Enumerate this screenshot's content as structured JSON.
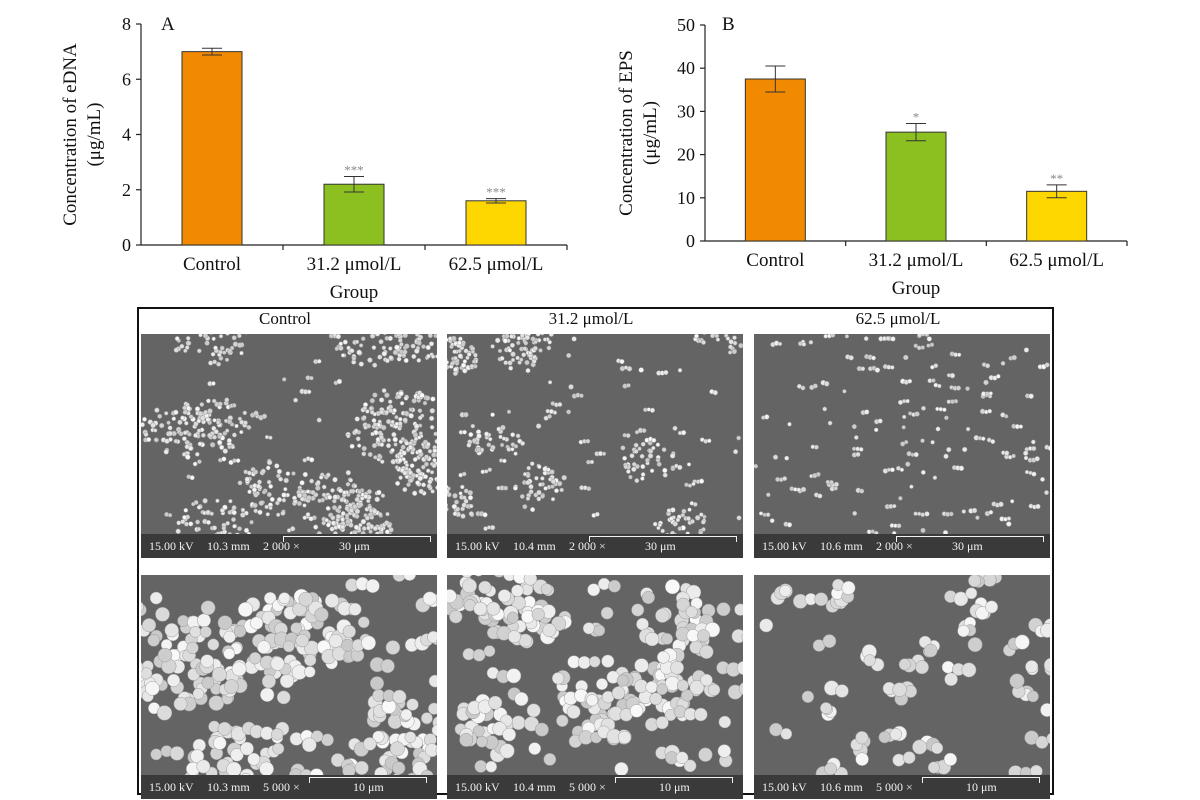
{
  "chart_data": [
    {
      "type": "bar",
      "panel_label": "A",
      "categories": [
        "Control",
        "31.2 μmol/L",
        "62.5 μmol/L"
      ],
      "values": [
        7.0,
        2.2,
        1.6
      ],
      "errors": [
        0.12,
        0.28,
        0.08
      ],
      "significance": [
        "",
        "***",
        "***"
      ],
      "colors": [
        "#f18a00",
        "#8cc021",
        "#ffd700"
      ],
      "xlabel": "Group",
      "ylabel_line1": "Concentration of eDNA",
      "ylabel_line2": "(μg/mL)",
      "ylim": [
        0,
        8
      ],
      "yticks": [
        0,
        2,
        4,
        6,
        8
      ]
    },
    {
      "type": "bar",
      "panel_label": "B",
      "categories": [
        "Control",
        "31.2 μmol/L",
        "62.5 μmol/L"
      ],
      "values": [
        37.5,
        25.2,
        11.5
      ],
      "errors": [
        3.0,
        2.0,
        1.5
      ],
      "significance": [
        "",
        "*",
        "**"
      ],
      "colors": [
        "#f18a00",
        "#8cc021",
        "#ffd700"
      ],
      "xlabel": "Group",
      "ylabel_line1": "Concentration of EPS",
      "ylabel_line2": "(μg/mL)",
      "ylim": [
        0,
        50
      ],
      "yticks": [
        0,
        10,
        20,
        30,
        40,
        50
      ]
    }
  ],
  "sem_figure": {
    "column_titles": [
      "Control",
      "31.2 μmol/L",
      "62.5 μmol/L"
    ],
    "panels": [
      {
        "group": "Control",
        "info": {
          "voltage": "15.00 kV",
          "wd": "10.3 mm",
          "mag": "2 000 ×",
          "scale": "30 μm"
        },
        "density": "high",
        "zoom": "low"
      },
      {
        "group": "31.2 μmol/L",
        "info": {
          "voltage": "15.00 kV",
          "wd": "10.4 mm",
          "mag": "2 000 ×",
          "scale": "30 μm"
        },
        "density": "medium",
        "zoom": "low"
      },
      {
        "group": "62.5 μmol/L",
        "info": {
          "voltage": "15.00 kV",
          "wd": "10.6 mm",
          "mag": "2 000 ×",
          "scale": "30 μm"
        },
        "density": "low",
        "zoom": "low"
      },
      {
        "group": "Control",
        "info": {
          "voltage": "15.00 kV",
          "wd": "10.3 mm",
          "mag": "5 000 ×",
          "scale": "10 μm"
        },
        "density": "high",
        "zoom": "high"
      },
      {
        "group": "31.2 μmol/L",
        "info": {
          "voltage": "15.00 kV",
          "wd": "10.4 mm",
          "mag": "5 000 ×",
          "scale": "10 μm"
        },
        "density": "medium",
        "zoom": "high"
      },
      {
        "group": "62.5 μmol/L",
        "info": {
          "voltage": "15.00 kV",
          "wd": "10.6 mm",
          "mag": "5 000 ×",
          "scale": "10 μm"
        },
        "density": "low",
        "zoom": "high"
      }
    ]
  }
}
